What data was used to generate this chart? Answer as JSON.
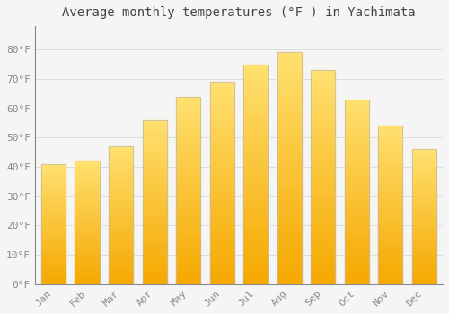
{
  "title": "Average monthly temperatures (°F ) in Yachimata",
  "months": [
    "Jan",
    "Feb",
    "Mar",
    "Apr",
    "May",
    "Jun",
    "Jul",
    "Aug",
    "Sep",
    "Oct",
    "Nov",
    "Dec"
  ],
  "values": [
    41,
    42,
    47,
    56,
    64,
    69,
    75,
    79,
    73,
    63,
    54,
    46
  ],
  "bar_color_bottom": "#F5A800",
  "bar_color_top": "#FFE070",
  "bar_edge_color": "#CCCCCC",
  "background_color": "#F5F5F5",
  "plot_bg_color": "#F5F5F5",
  "ylim": [
    0,
    88
  ],
  "yticks": [
    0,
    10,
    20,
    30,
    40,
    50,
    60,
    70,
    80
  ],
  "ytick_labels": [
    "0°F",
    "10°F",
    "20°F",
    "30°F",
    "40°F",
    "50°F",
    "60°F",
    "70°F",
    "80°F"
  ],
  "grid_color": "#DDDDDD",
  "spine_color": "#888888",
  "tick_label_color": "#888888",
  "title_fontsize": 10,
  "tick_fontsize": 8,
  "font_family": "monospace",
  "bar_width": 0.72
}
